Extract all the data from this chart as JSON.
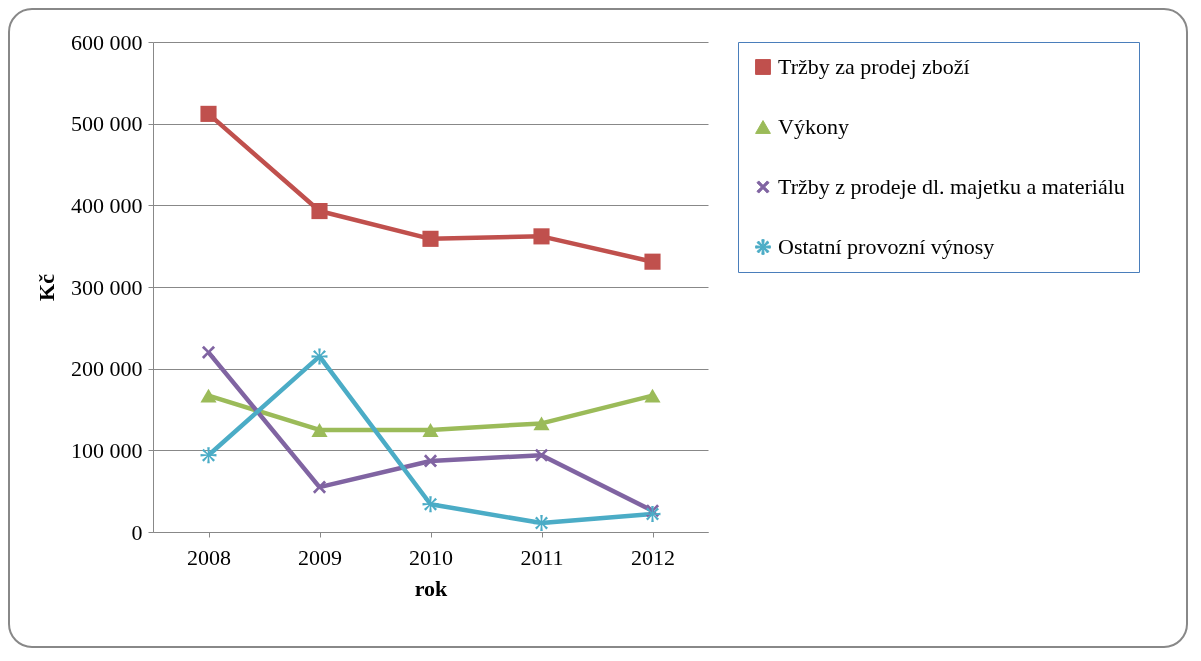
{
  "chart_data": {
    "type": "line",
    "xlabel": "rok",
    "ylabel": "Kč",
    "categories": [
      "2008",
      "2009",
      "2010",
      "2011",
      "2012"
    ],
    "series": [
      {
        "name": "Tržby za prodej zboží",
        "color": "#c0504d",
        "marker": "square",
        "values": [
          512000,
          393000,
          359000,
          362000,
          331000
        ]
      },
      {
        "name": "Výkony",
        "color": "#9bbb59",
        "marker": "triangle",
        "values": [
          167000,
          125000,
          125000,
          133000,
          167000
        ]
      },
      {
        "name": "Tržby z prodeje dl. majetku a materiálu",
        "color": "#8064a2",
        "marker": "cross",
        "values": [
          220000,
          55000,
          87000,
          94000,
          26000
        ]
      },
      {
        "name": "Ostatní provozní výnosy",
        "color": "#4bacc6",
        "marker": "star",
        "values": [
          94000,
          215000,
          34000,
          11000,
          22000
        ]
      }
    ],
    "ylim": [
      0,
      600000
    ],
    "yticks": [
      {
        "value": 0,
        "label": "0"
      },
      {
        "value": 100000,
        "label": "100 000"
      },
      {
        "value": 200000,
        "label": "200 000"
      },
      {
        "value": 300000,
        "label": "300 000"
      },
      {
        "value": 400000,
        "label": "400 000"
      },
      {
        "value": 500000,
        "label": "500 000"
      },
      {
        "value": 600000,
        "label": "600 000"
      }
    ],
    "grid": "y",
    "legend": "right"
  }
}
